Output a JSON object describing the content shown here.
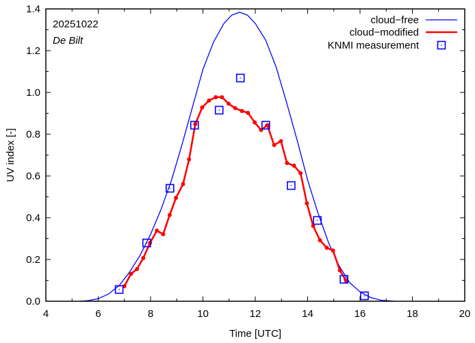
{
  "chart_data": {
    "type": "line",
    "title": "",
    "xlabel": "Time  [UTC]",
    "ylabel": "UV index  [-]",
    "xlim": [
      4,
      20
    ],
    "ylim": [
      0.0,
      1.4
    ],
    "xticks": [
      4,
      6,
      8,
      10,
      12,
      14,
      16,
      18,
      20
    ],
    "xtick_labels": [
      "4",
      "6",
      "8",
      "10",
      "12",
      "14",
      "16",
      "18",
      "20"
    ],
    "yticks": [
      0.0,
      0.2,
      0.4,
      0.6,
      0.8,
      1.0,
      1.2,
      1.4
    ],
    "ytick_labels": [
      "0.0",
      "0.2",
      "0.4",
      "0.6",
      "0.8",
      "1.0",
      "1.2",
      "1.4"
    ],
    "grid": false,
    "legend_position": "top-right",
    "annotations": [
      "20251022",
      "De Bilt"
    ],
    "series": [
      {
        "name": "cloud−free",
        "kind": "line",
        "color": "#0000ff",
        "x": [
          5.3,
          5.6,
          6.0,
          6.4,
          6.8,
          7.2,
          7.6,
          8.0,
          8.4,
          8.8,
          9.2,
          9.6,
          10.0,
          10.4,
          10.8,
          11.1,
          11.4,
          11.7,
          12.0,
          12.4,
          12.8,
          13.2,
          13.6,
          14.0,
          14.4,
          14.8,
          15.2,
          15.6,
          16.0,
          16.4,
          16.8,
          17.3
        ],
        "y": [
          0.0,
          0.003,
          0.012,
          0.035,
          0.075,
          0.14,
          0.22,
          0.32,
          0.44,
          0.58,
          0.75,
          0.93,
          1.11,
          1.24,
          1.33,
          1.37,
          1.384,
          1.37,
          1.33,
          1.25,
          1.12,
          0.95,
          0.77,
          0.58,
          0.42,
          0.28,
          0.17,
          0.09,
          0.045,
          0.018,
          0.005,
          0.0
        ]
      },
      {
        "name": "cloud−modified",
        "kind": "line-points",
        "color": "#ff0000",
        "x": [
          7.0,
          7.25,
          7.48,
          7.72,
          7.98,
          8.24,
          8.48,
          8.73,
          8.97,
          9.24,
          9.47,
          9.71,
          9.97,
          10.23,
          10.49,
          10.73,
          10.98,
          11.23,
          11.49,
          11.72,
          11.98,
          12.22,
          12.46,
          12.72,
          12.98,
          13.21,
          13.48,
          13.73,
          13.97,
          14.21,
          14.47,
          14.73,
          14.97,
          15.23,
          15.47
        ],
        "y": [
          0.072,
          0.131,
          0.154,
          0.207,
          0.279,
          0.338,
          0.321,
          0.413,
          0.495,
          0.561,
          0.679,
          0.849,
          0.928,
          0.961,
          0.977,
          0.977,
          0.946,
          0.925,
          0.911,
          0.902,
          0.856,
          0.82,
          0.843,
          0.748,
          0.767,
          0.662,
          0.649,
          0.613,
          0.469,
          0.361,
          0.292,
          0.256,
          0.243,
          0.148,
          0.098
        ]
      },
      {
        "name": "KNMI measurement",
        "kind": "markers",
        "color": "#0000ff",
        "x": [
          6.8,
          7.85,
          8.74,
          9.68,
          10.62,
          11.43,
          12.4,
          13.37,
          14.37,
          15.39,
          16.17
        ],
        "y": [
          0.056,
          0.279,
          0.541,
          0.843,
          0.915,
          1.069,
          0.843,
          0.554,
          0.387,
          0.105,
          0.026
        ]
      }
    ]
  }
}
